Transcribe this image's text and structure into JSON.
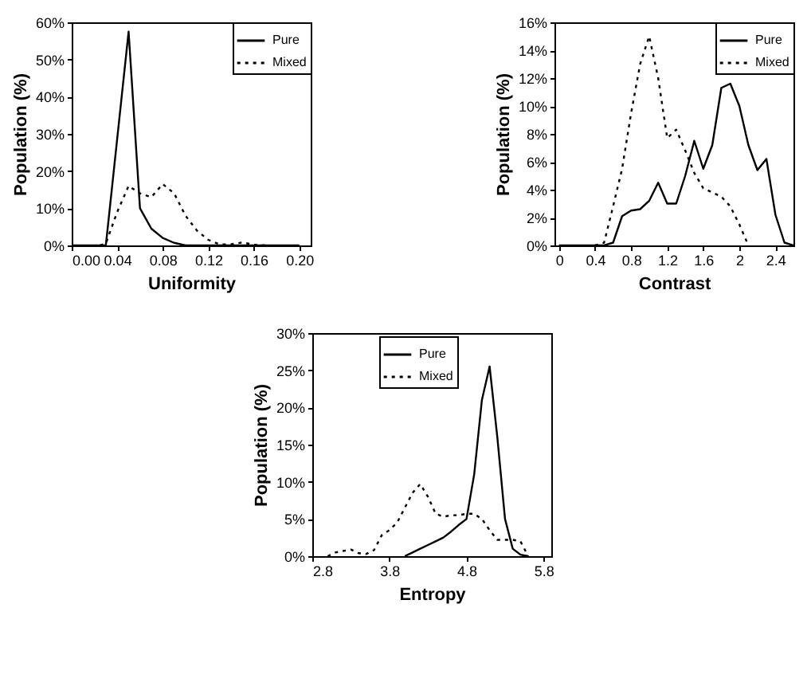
{
  "chart_data": [
    {
      "type": "line",
      "xlabel": "Uniformity",
      "ylabel": "Population (%)",
      "xlim": [
        0,
        0.21
      ],
      "xticks": [
        {
          "value": 0,
          "label": "0.00"
        },
        {
          "value": 0.04,
          "label": "0.04"
        },
        {
          "value": 0.08,
          "label": "0.08"
        },
        {
          "value": 0.12,
          "label": "0.12"
        },
        {
          "value": 0.16,
          "label": "0.16"
        },
        {
          "value": 0.2,
          "label": "0.20"
        }
      ],
      "ylim": [
        0,
        60
      ],
      "yticks": [
        {
          "value": 0,
          "label": "0%"
        },
        {
          "value": 10,
          "label": "10%"
        },
        {
          "value": 20,
          "label": "20%"
        },
        {
          "value": 30,
          "label": "30%"
        },
        {
          "value": 40,
          "label": "40%"
        },
        {
          "value": 50,
          "label": "50%"
        },
        {
          "value": 60,
          "label": "60%"
        }
      ],
      "legend": "top right",
      "grid": false,
      "series": [
        {
          "name": "Pure",
          "color": "#000000",
          "line_style": "solid",
          "x": [
            0,
            0.03,
            0.05,
            0.06,
            0.07,
            0.08,
            0.09,
            0.1,
            0.2
          ],
          "values": [
            0,
            0,
            57.5,
            10,
            4.5,
            2,
            0.7,
            0,
            0
          ]
        },
        {
          "name": "Mixed",
          "color": "#000000",
          "line_style": "dotted",
          "x": [
            0.025,
            0.03,
            0.04,
            0.05,
            0.06,
            0.07,
            0.08,
            0.09,
            0.1,
            0.11,
            0.12,
            0.13,
            0.14,
            0.15,
            0.16,
            0.17
          ],
          "values": [
            0,
            0.5,
            9,
            16,
            14,
            13,
            16.5,
            14,
            8,
            4,
            1.5,
            0.3,
            0.3,
            0.8,
            0.2,
            0
          ]
        }
      ]
    },
    {
      "type": "line",
      "xlabel": "Contrast",
      "ylabel": "Population (%)",
      "xlim": [
        -0.05,
        2.6
      ],
      "xticks": [
        0,
        0.4,
        0.8,
        1.2,
        1.6,
        2,
        2.4
      ],
      "ylim": [
        0,
        16
      ],
      "yticks": [
        {
          "value": 0,
          "label": "0%"
        },
        {
          "value": 2,
          "label": "2%"
        },
        {
          "value": 4,
          "label": "4%"
        },
        {
          "value": 6,
          "label": "6%"
        },
        {
          "value": 8,
          "label": "8%"
        },
        {
          "value": 10,
          "label": "10%"
        },
        {
          "value": 12,
          "label": "12%"
        },
        {
          "value": 14,
          "label": "14%"
        },
        {
          "value": 16,
          "label": "16%"
        }
      ],
      "legend": "top right",
      "grid": false,
      "series": [
        {
          "name": "Pure",
          "color": "#000000",
          "line_style": "solid",
          "x": [
            0,
            0.5,
            0.6,
            0.7,
            0.8,
            0.9,
            1.0,
            1.1,
            1.2,
            1.3,
            1.4,
            1.5,
            1.6,
            1.7,
            1.8,
            1.9,
            2.0,
            2.1,
            2.2,
            2.3,
            2.4,
            2.5,
            2.6
          ],
          "values": [
            0,
            0,
            0.2,
            2.1,
            2.5,
            2.6,
            3.2,
            4.5,
            3,
            3,
            5,
            7.5,
            5.5,
            7.2,
            11.3,
            11.6,
            10,
            7.2,
            5.4,
            6.2,
            2.2,
            0.2,
            0
          ]
        },
        {
          "name": "Mixed",
          "color": "#000000",
          "line_style": "dotted",
          "x": [
            0.4,
            0.5,
            0.6,
            0.7,
            0.8,
            0.9,
            1.0,
            1.1,
            1.2,
            1.3,
            1.4,
            1.5,
            1.6,
            1.7,
            1.8,
            1.9,
            2.0,
            2.1
          ],
          "values": [
            0,
            0.2,
            2.8,
            5.5,
            9.5,
            13,
            15,
            12,
            7.7,
            8.3,
            6.8,
            5.2,
            4.1,
            3.8,
            3.5,
            2.8,
            1.5,
            0
          ]
        }
      ]
    },
    {
      "type": "line",
      "xlabel": "Entropy",
      "ylabel": "Population (%)",
      "xlim": [
        2.8,
        5.9
      ],
      "xticks": [
        2.8,
        3.8,
        4.8,
        5.8
      ],
      "ylim": [
        0,
        30
      ],
      "yticks": [
        {
          "value": 0,
          "label": "0%"
        },
        {
          "value": 5,
          "label": "5%"
        },
        {
          "value": 10,
          "label": "10%"
        },
        {
          "value": 15,
          "label": "15%"
        },
        {
          "value": 20,
          "label": "20%"
        },
        {
          "value": 25,
          "label": "25%"
        },
        {
          "value": 30,
          "label": "30%"
        }
      ],
      "legend": "top",
      "grid": false,
      "series": [
        {
          "name": "Pure",
          "color": "#000000",
          "line_style": "solid",
          "x": [
            4.0,
            4.1,
            4.2,
            4.3,
            4.4,
            4.5,
            4.6,
            4.7,
            4.8,
            4.9,
            5.0,
            5.1,
            5.2,
            5.3,
            5.4,
            5.5,
            5.6
          ],
          "values": [
            0,
            0.5,
            1,
            1.5,
            2,
            2.5,
            3.3,
            4.2,
            5,
            11,
            21,
            25.5,
            16,
            5,
            1,
            0.2,
            0
          ]
        },
        {
          "name": "Mixed",
          "color": "#000000",
          "line_style": "dotted",
          "x": [
            3.0,
            3.1,
            3.2,
            3.3,
            3.4,
            3.5,
            3.6,
            3.7,
            3.8,
            3.9,
            4.0,
            4.1,
            4.2,
            4.3,
            4.4,
            4.5,
            4.6,
            4.7,
            4.8,
            4.9,
            5.0,
            5.1,
            5.2,
            5.3,
            5.4,
            5.5,
            5.6
          ],
          "values": [
            0,
            0.5,
            0.7,
            0.9,
            0.4,
            0.3,
            0.8,
            2.8,
            3.5,
            4.5,
            6.5,
            8.5,
            9.7,
            8,
            5.7,
            5.3,
            5.5,
            5.5,
            5.7,
            5.7,
            5,
            3.5,
            2.2,
            2.2,
            2.2,
            2,
            0
          ]
        }
      ]
    }
  ]
}
